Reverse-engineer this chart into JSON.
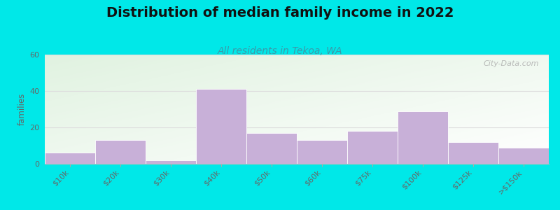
{
  "title": "Distribution of median family income in 2022",
  "subtitle": "All residents in Tekoa, WA",
  "categories": [
    "$10k",
    "$20k",
    "$30k",
    "$40k",
    "$50k",
    "$60k",
    "$75k",
    "$100k",
    "$125k",
    ">$150k"
  ],
  "values": [
    6,
    13,
    2,
    41,
    17,
    13,
    18,
    29,
    12,
    9
  ],
  "bar_color": "#c8b0d8",
  "ylim": [
    0,
    60
  ],
  "yticks": [
    0,
    20,
    40,
    60
  ],
  "ylabel": "families",
  "background_outer": "#00e8e8",
  "plot_bg_color": "#eef4ea",
  "title_fontsize": 14,
  "subtitle_fontsize": 10,
  "subtitle_color": "#3a9aaa",
  "watermark": "City-Data.com",
  "tick_label_color": "#666666",
  "grid_color": "#dddddd"
}
